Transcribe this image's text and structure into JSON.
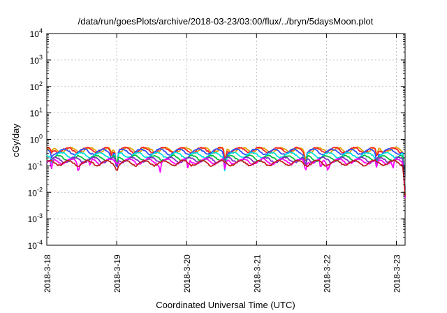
{
  "chart_data": {
    "type": "line",
    "title": "/data/run/goesPlots/archive/2018-03-23/03:00/flux/../bryn/5daysMoon.plot",
    "xlabel": "Coordinated Universal Time (UTC)",
    "ylabel": "cGy/day",
    "y_scale": "log",
    "ylim": [
      0.0001,
      10000
    ],
    "xlim": [
      "2018-03-18 00:00",
      "2018-03-23 03:00"
    ],
    "grid": true,
    "legend": "none",
    "x_ticks": [
      "2018-3-18",
      "2018-3-19",
      "2018-3-20",
      "2018-3-21",
      "2018-3-22",
      "2018-3-23"
    ],
    "y_ticks": [
      {
        "base": "10",
        "exp": "-4"
      },
      {
        "base": "10",
        "exp": "-3"
      },
      {
        "base": "10",
        "exp": "-2"
      },
      {
        "base": "10",
        "exp": "-1"
      },
      {
        "base": "10",
        "exp": "0"
      },
      {
        "base": "10",
        "exp": "1"
      },
      {
        "base": "10",
        "exp": "2"
      },
      {
        "base": "10",
        "exp": "3"
      },
      {
        "base": "10",
        "exp": "4"
      }
    ],
    "series": [
      {
        "color": "#e0a000",
        "level": 0.4,
        "dips": [
          [
            0.07,
            0.3
          ],
          [
            0.92,
            0.3
          ],
          [
            1.0,
            0.8
          ],
          [
            2.55,
            0.7
          ],
          [
            3.7,
            0.6
          ],
          [
            4.72,
            0.5
          ],
          [
            5.12,
            0.9
          ]
        ]
      },
      {
        "color": "#ff2020",
        "level": 0.4,
        "dips": [
          [
            0.07,
            0.3
          ],
          [
            0.92,
            0.3
          ],
          [
            1.0,
            0.8
          ],
          [
            2.55,
            0.7
          ],
          [
            3.7,
            0.6
          ],
          [
            4.72,
            0.5
          ],
          [
            5.12,
            0.9
          ]
        ]
      },
      {
        "color": "#3050ff",
        "level": 0.35,
        "dips": [
          [
            0.07,
            0.35
          ],
          [
            0.92,
            0.35
          ],
          [
            1.0,
            0.9
          ],
          [
            2.55,
            0.8
          ],
          [
            3.7,
            0.7
          ],
          [
            4.72,
            0.6
          ],
          [
            5.12,
            0.95
          ]
        ]
      },
      {
        "color": "#00e0e0",
        "level": 0.26,
        "dips": [
          [
            0.07,
            0.35
          ],
          [
            1.0,
            0.8
          ],
          [
            2.55,
            0.7
          ],
          [
            3.7,
            0.7
          ],
          [
            4.72,
            0.6
          ],
          [
            5.12,
            0.95
          ]
        ]
      },
      {
        "color": "#00c040",
        "level": 0.2,
        "dips": [
          [
            0.4,
            0.2
          ],
          [
            1.0,
            0.6
          ],
          [
            3.7,
            0.6
          ],
          [
            5.12,
            0.9
          ]
        ]
      },
      {
        "color": "#8030c0",
        "level": 0.17,
        "dips": [
          [
            1.0,
            0.5
          ],
          [
            3.7,
            0.5
          ],
          [
            5.12,
            0.9
          ]
        ]
      },
      {
        "color": "#ff00ff",
        "level": 0.15,
        "dips": [
          [
            0.07,
            0.55
          ],
          [
            0.45,
            0.55
          ],
          [
            0.62,
            0.45
          ],
          [
            1.62,
            0.55
          ],
          [
            2.02,
            0.55
          ],
          [
            2.55,
            0.6
          ],
          [
            3.7,
            0.6
          ],
          [
            3.92,
            0.55
          ],
          [
            4.02,
            0.45
          ],
          [
            4.72,
            0.55
          ],
          [
            4.95,
            0.55
          ],
          [
            5.12,
            0.85
          ]
        ]
      },
      {
        "color": "#c02020",
        "level": 0.13,
        "dips": [
          [
            1.0,
            0.4
          ],
          [
            5.12,
            0.8
          ]
        ]
      }
    ]
  }
}
